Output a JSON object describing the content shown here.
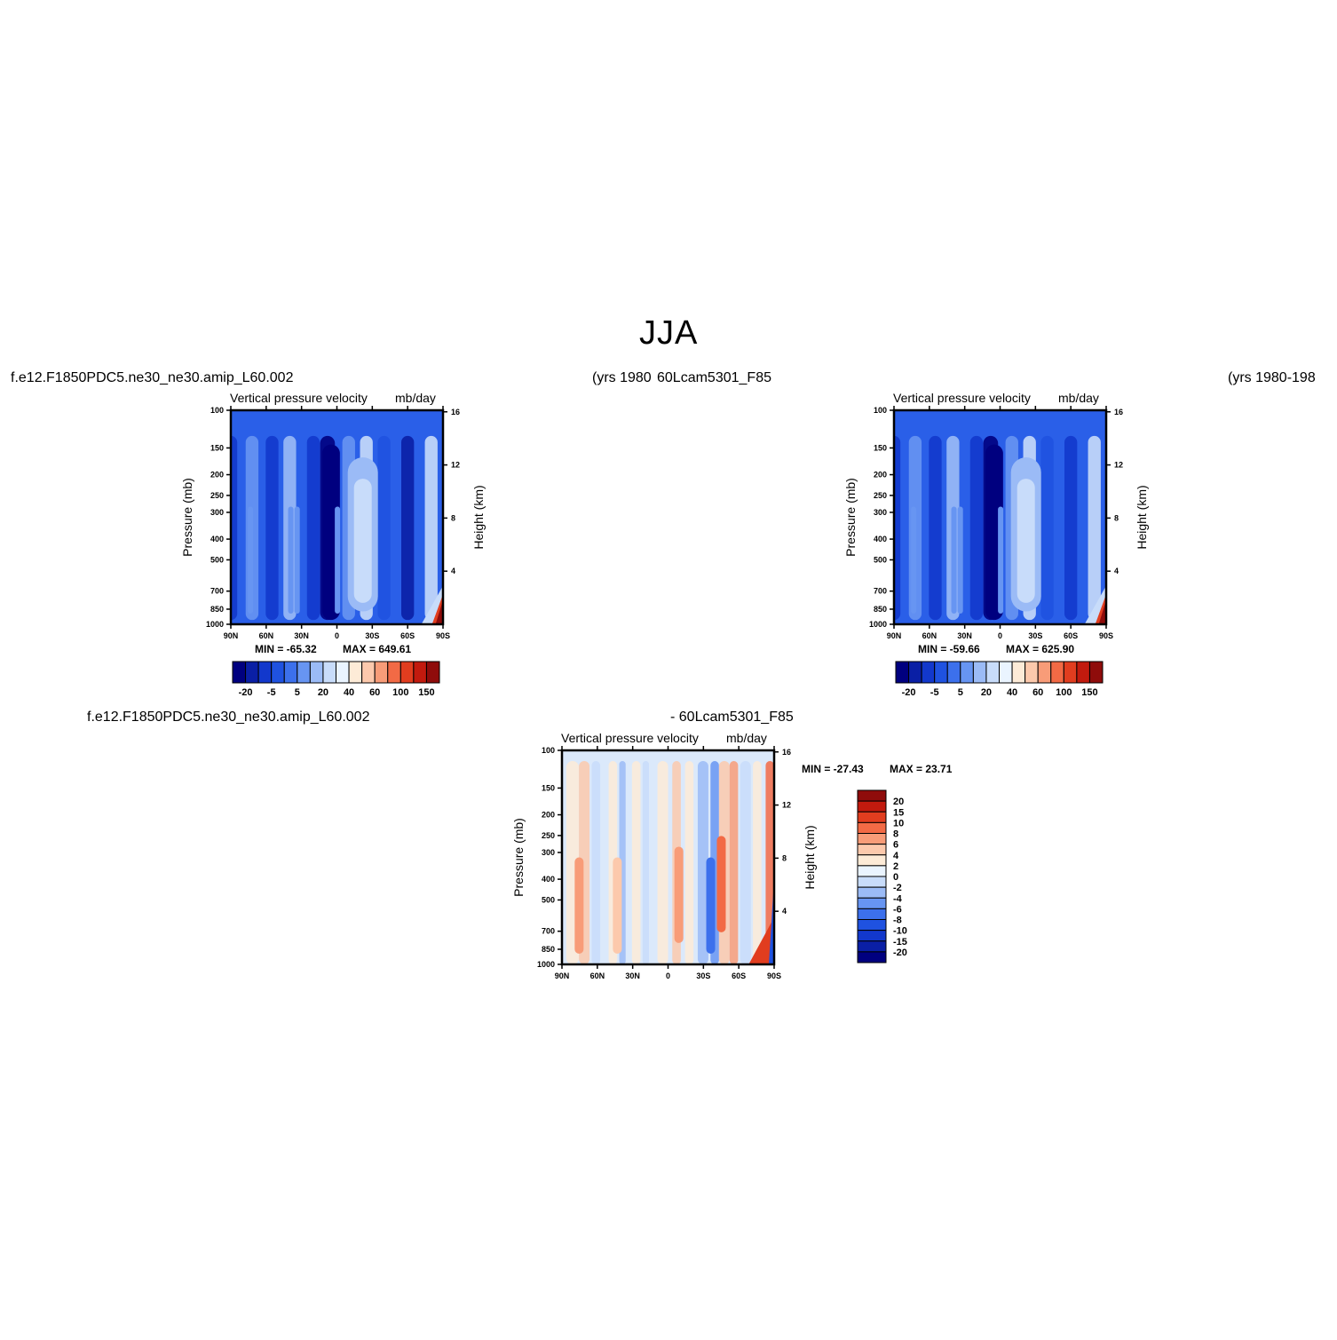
{
  "page": {
    "title": "JJA",
    "case_left": "f.e12.F1850PDC5.ne30_ne30.amip_L60.002",
    "years_left": "(yrs 1980",
    "case_right": "60Lcam5301_F85",
    "years_right": "(yrs 1980-198",
    "diff_case_left": "f.e12.F1850PDC5.ne30_ne30.amip_L60.002",
    "diff_case_right": "- 60Lcam5301_F85"
  },
  "colors": {
    "abs_scale": [
      "#00007f",
      "#0a1fa5",
      "#1238cc",
      "#1f52e0",
      "#3c70ec",
      "#6795f2",
      "#9bbbf6",
      "#c8dcfa",
      "#eaf4ff",
      "#fdebd7",
      "#fcc9ac",
      "#f89c78",
      "#f26a45",
      "#e13d1f",
      "#c21a0e",
      "#8f0c0b"
    ],
    "diff_scale": [
      "#00007f",
      "#0a1fa5",
      "#1238cc",
      "#1f52e0",
      "#3c70ec",
      "#6795f2",
      "#9bbbf6",
      "#c8dcfa",
      "#eaf4ff",
      "#fdebd7",
      "#fcc9ac",
      "#f89c78",
      "#f26a45",
      "#e13d1f",
      "#c21a0e",
      "#8f0c0b"
    ]
  },
  "chart_data": [
    {
      "type": "heatmap",
      "title_left": "Vertical pressure velocity",
      "title_right": "mb/day",
      "ylabel": "Pressure (mb)",
      "ylabel_right": "Height (km)",
      "x_ticks": [
        "90N",
        "60N",
        "30N",
        "0",
        "30S",
        "60S",
        "90S"
      ],
      "y_ticks": [
        "100",
        "150",
        "200",
        "250",
        "300",
        "400",
        "500",
        "700",
        "850",
        "1000"
      ],
      "y_ticks_right": [
        "16",
        "12",
        "8",
        "4"
      ],
      "ylim": [
        1000,
        100
      ],
      "min_label": "MIN = -65.32",
      "max_label": "MAX = 649.61",
      "min": -65.32,
      "max": 649.61,
      "colorbar_labels": [
        "-20",
        "-5",
        "5",
        "20",
        "40",
        "60",
        "100",
        "150"
      ],
      "field": {
        "x": [
          90,
          75,
          60,
          45,
          30,
          15,
          0,
          -15,
          -30,
          -45,
          -60,
          -75,
          -90
        ],
        "columns": [
          {
            "lat": 90,
            "level": -12
          },
          {
            "lat": 72,
            "level": 4
          },
          {
            "lat": 55,
            "level": -14
          },
          {
            "lat": 40,
            "level": 6
          },
          {
            "lat": 20,
            "level": -16
          },
          {
            "lat": 8,
            "level": -40
          },
          {
            "lat": -10,
            "level": 1
          },
          {
            "lat": -25,
            "level": 12
          },
          {
            "lat": -40,
            "level": -8
          },
          {
            "lat": -60,
            "level": -22
          },
          {
            "lat": -80,
            "level": 18
          }
        ]
      }
    },
    {
      "type": "heatmap",
      "title_left": "Vertical pressure velocity",
      "title_right": "mb/day",
      "ylabel": "Pressure (mb)",
      "ylabel_right": "Height (km)",
      "x_ticks": [
        "90N",
        "60N",
        "30N",
        "0",
        "30S",
        "60S",
        "90S"
      ],
      "y_ticks": [
        "100",
        "150",
        "200",
        "250",
        "300",
        "400",
        "500",
        "700",
        "850",
        "1000"
      ],
      "y_ticks_right": [
        "16",
        "12",
        "8",
        "4"
      ],
      "ylim": [
        1000,
        100
      ],
      "min_label": "MIN = -59.66",
      "max_label": "MAX = 625.90",
      "min": -59.66,
      "max": 625.9,
      "colorbar_labels": [
        "-20",
        "-5",
        "5",
        "20",
        "40",
        "60",
        "100",
        "150"
      ],
      "field": {
        "x": [
          90,
          75,
          60,
          45,
          30,
          15,
          0,
          -15,
          -30,
          -45,
          -60,
          -75,
          -90
        ],
        "columns": [
          {
            "lat": 90,
            "level": -12
          },
          {
            "lat": 72,
            "level": 4
          },
          {
            "lat": 55,
            "level": -14
          },
          {
            "lat": 40,
            "level": 6
          },
          {
            "lat": 20,
            "level": -18
          },
          {
            "lat": 8,
            "level": -42
          },
          {
            "lat": -10,
            "level": 1
          },
          {
            "lat": -25,
            "level": 14
          },
          {
            "lat": -40,
            "level": -8
          },
          {
            "lat": -60,
            "level": -20
          },
          {
            "lat": -80,
            "level": 16
          }
        ]
      }
    },
    {
      "type": "heatmap",
      "title_left": "Vertical pressure velocity",
      "title_right": "mb/day",
      "ylabel": "Pressure (mb)",
      "ylabel_right": "Height (km)",
      "x_ticks": [
        "90N",
        "60N",
        "30N",
        "0",
        "30S",
        "60S",
        "90S"
      ],
      "y_ticks": [
        "100",
        "150",
        "200",
        "250",
        "300",
        "400",
        "500",
        "700",
        "850",
        "1000"
      ],
      "y_ticks_right": [
        "16",
        "12",
        "8",
        "4"
      ],
      "ylim": [
        1000,
        100
      ],
      "min_label": "MIN = -27.43",
      "max_label": "MAX =  23.71",
      "min": -27.43,
      "max": 23.71,
      "colorbar_labels": [
        "20",
        "15",
        "10",
        "8",
        "6",
        "4",
        "2",
        "0",
        "-2",
        "-4",
        "-6",
        "-8",
        "-10",
        "-15",
        "-20"
      ]
    }
  ]
}
